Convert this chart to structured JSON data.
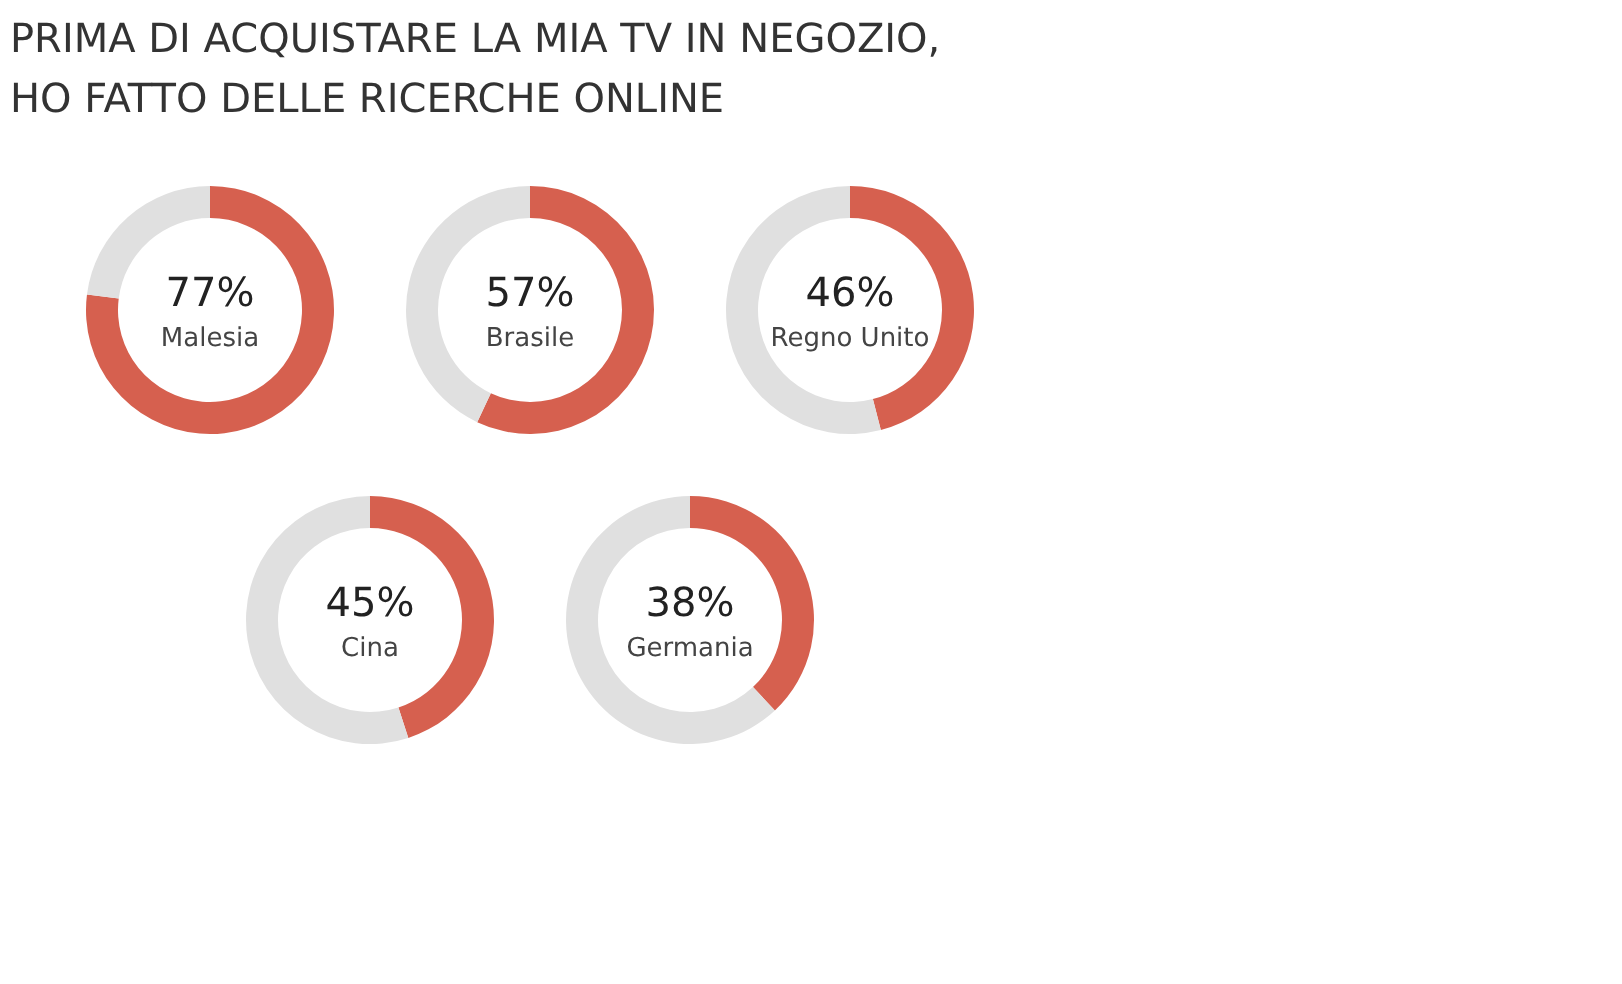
{
  "chart_data": [
    {
      "type": "other",
      "title": "PRIMA DI ACQUISTARE LA MIA TV IN NEGOZIO,\nHO FATTO DELLE RICERCHE ONLINE"
    },
    {
      "type": "donut",
      "title": "Malesia",
      "categories": [
        null,
        null
      ],
      "values": [
        77,
        23
      ],
      "colors": [
        "#d6604f",
        "#e0e0e0"
      ],
      "value_labels": [
        "77%",
        null
      ]
    },
    {
      "type": "donut",
      "title": "Brasile",
      "categories": [
        null,
        null
      ],
      "values": [
        57,
        43
      ],
      "colors": [
        "#d6604f",
        "#e0e0e0"
      ],
      "value_labels": [
        "57%",
        null
      ]
    },
    {
      "type": "donut",
      "title": "Regno Unito",
      "categories": [
        null,
        null
      ],
      "values": [
        46,
        54
      ],
      "colors": [
        "#d6604f",
        "#e0e0e0"
      ],
      "value_labels": [
        "46%",
        null
      ]
    },
    {
      "type": "donut",
      "title": "Cina",
      "categories": [
        null,
        null
      ],
      "values": [
        45,
        55
      ],
      "colors": [
        "#d6604f",
        "#e0e0e0"
      ],
      "value_labels": [
        "45%",
        null
      ]
    },
    {
      "type": "donut",
      "title": "Germania",
      "categories": [
        null,
        null
      ],
      "values": [
        38,
        62
      ],
      "colors": [
        "#d6604f",
        "#e0e0e0"
      ],
      "value_labels": [
        "38%",
        null
      ]
    }
  ]
}
